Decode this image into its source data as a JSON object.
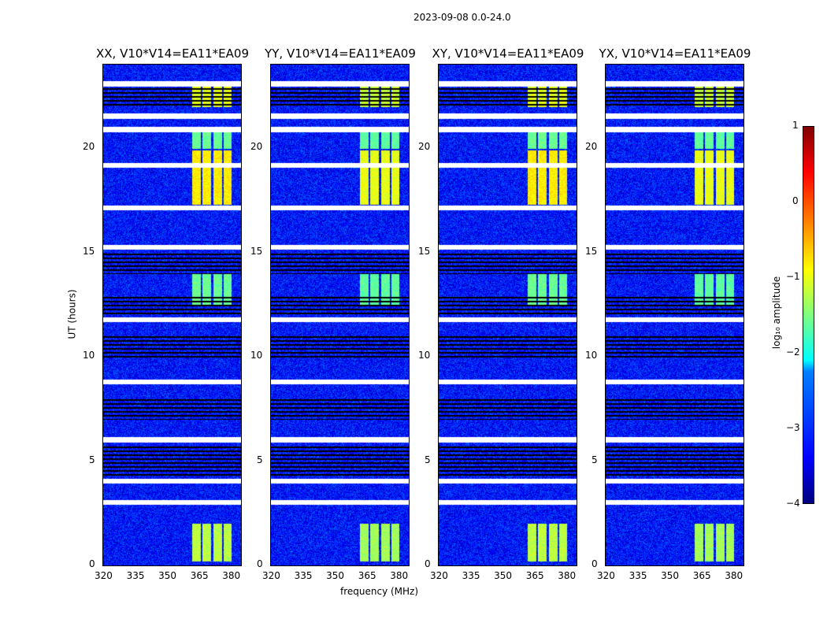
{
  "chart_data": {
    "type": "heatmap",
    "title": "2023-09-08 0.0-24.0",
    "xlabel": "frequency (MHz)",
    "ylabel": "UT (hours)",
    "xlim": [
      320,
      384.7
    ],
    "ylim": [
      0,
      24
    ],
    "xticks": [
      "320",
      "335",
      "350",
      "365",
      "380"
    ],
    "xtick_values": [
      320,
      335,
      350,
      365,
      380
    ],
    "yticks": [
      "0",
      "5",
      "10",
      "15",
      "20"
    ],
    "ytick_values": [
      0,
      5,
      10,
      15,
      20
    ],
    "panels": [
      {
        "title": "XX, V10*V14=EA11*EA09"
      },
      {
        "title": "YY, V10*V14=EA11*EA09"
      },
      {
        "title": "XY, V10*V14=EA11*EA09"
      },
      {
        "title": "YX, V10*V14=EA11*EA09"
      }
    ],
    "colorbar": {
      "label": "log₁₀ amplitude",
      "range": [
        -4,
        1
      ],
      "ticks": [
        "1",
        "0",
        "−1",
        "−2",
        "−3",
        "−4"
      ],
      "tick_values": [
        1,
        0,
        -1,
        -2,
        -3,
        -4
      ]
    },
    "background_log_amplitude": -3.3,
    "flagged_hours_white": [
      23.1,
      21.55,
      20.9,
      19.2,
      17.15,
      15.27,
      11.8,
      8.8,
      6.04,
      4.05,
      3.04
    ],
    "flagged_ranges_black": [
      [
        22.0,
        23.0
      ],
      [
        14.0,
        15.0
      ],
      [
        12.0,
        13.0
      ],
      [
        10.0,
        11.0
      ],
      [
        7.0,
        8.0
      ],
      [
        4.2,
        5.8
      ]
    ],
    "bright_channels_mhz": [
      [
        361.5,
        365.5
      ],
      [
        366.5,
        370.5
      ],
      [
        371.5,
        375.5
      ],
      [
        376.5,
        380
      ]
    ],
    "active_periods": [
      {
        "hours": [
          17.3,
          19.9
        ],
        "log_amp": -0.8
      },
      {
        "hours": [
          0.2,
          2.0
        ],
        "log_amp": -1.2
      },
      {
        "hours": [
          22.0,
          23.0
        ],
        "log_amp": -1.0
      },
      {
        "hours": [
          12.5,
          14.0
        ],
        "log_amp": -1.6
      },
      {
        "hours": [
          20.0,
          21.0
        ],
        "log_amp": -1.6
      }
    ]
  }
}
